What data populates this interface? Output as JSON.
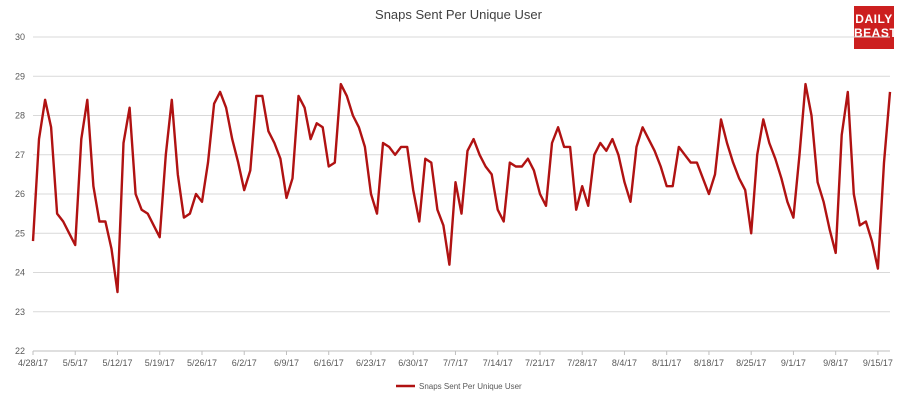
{
  "logo": {
    "line1": "DAILY",
    "line2": "BEAST"
  },
  "chart_data": {
    "type": "line",
    "title": "Snaps Sent Per Unique User",
    "xlabel": "",
    "ylabel": "",
    "ylim": [
      22,
      30
    ],
    "y_ticks": [
      22,
      23,
      24,
      25,
      26,
      27,
      28,
      29,
      30
    ],
    "grid": true,
    "legend": "bottom",
    "x_tick_labels": [
      "4/28/17",
      "5/5/17",
      "5/12/17",
      "5/19/17",
      "5/26/17",
      "6/2/17",
      "6/9/17",
      "6/16/17",
      "6/23/17",
      "6/30/17",
      "7/7/17",
      "7/14/17",
      "7/21/17",
      "7/28/17",
      "8/4/17",
      "8/11/17",
      "8/18/17",
      "8/25/17",
      "9/1/17",
      "9/8/17",
      "9/15/17"
    ],
    "x_start": "4/28/17",
    "x_end": "9/17/17",
    "series": [
      {
        "name": "Snaps Sent Per Unique User",
        "color": "#b01212",
        "values": [
          24.8,
          27.4,
          28.4,
          27.7,
          25.5,
          25.3,
          25.0,
          24.7,
          27.4,
          28.4,
          26.2,
          25.3,
          25.3,
          24.6,
          23.5,
          27.3,
          28.2,
          26.0,
          25.6,
          25.5,
          25.2,
          24.9,
          27.0,
          28.4,
          26.5,
          25.4,
          25.5,
          26.0,
          25.8,
          26.8,
          28.3,
          28.6,
          28.2,
          27.4,
          26.8,
          26.1,
          26.6,
          28.5,
          28.5,
          27.6,
          27.3,
          26.9,
          25.9,
          26.4,
          28.5,
          28.2,
          27.4,
          27.8,
          27.7,
          26.7,
          26.8,
          28.8,
          28.5,
          28.0,
          27.7,
          27.2,
          26.0,
          25.5,
          27.3,
          27.2,
          27.0,
          27.2,
          27.2,
          26.1,
          25.3,
          26.9,
          26.8,
          25.6,
          25.2,
          24.2,
          26.3,
          25.5,
          27.1,
          27.4,
          27.0,
          26.7,
          26.5,
          25.6,
          25.3,
          26.8,
          26.7,
          26.7,
          26.9,
          26.6,
          26.0,
          25.7,
          27.3,
          27.7,
          27.2,
          27.2,
          25.6,
          26.2,
          25.7,
          27.0,
          27.3,
          27.1,
          27.4,
          27.0,
          26.3,
          25.8,
          27.2,
          27.7,
          27.4,
          27.1,
          26.7,
          26.2,
          26.2,
          27.2,
          27.0,
          26.8,
          26.8,
          26.4,
          26.0,
          26.5,
          27.9,
          27.3,
          26.8,
          26.4,
          26.1,
          25.0,
          27.0,
          27.9,
          27.3,
          26.9,
          26.4,
          25.8,
          25.4,
          27.0,
          28.8,
          28.0,
          26.3,
          25.8,
          25.1,
          24.5,
          27.5,
          28.6,
          26.0,
          25.2,
          25.3,
          24.8,
          24.1,
          26.8,
          28.6
        ]
      }
    ]
  }
}
